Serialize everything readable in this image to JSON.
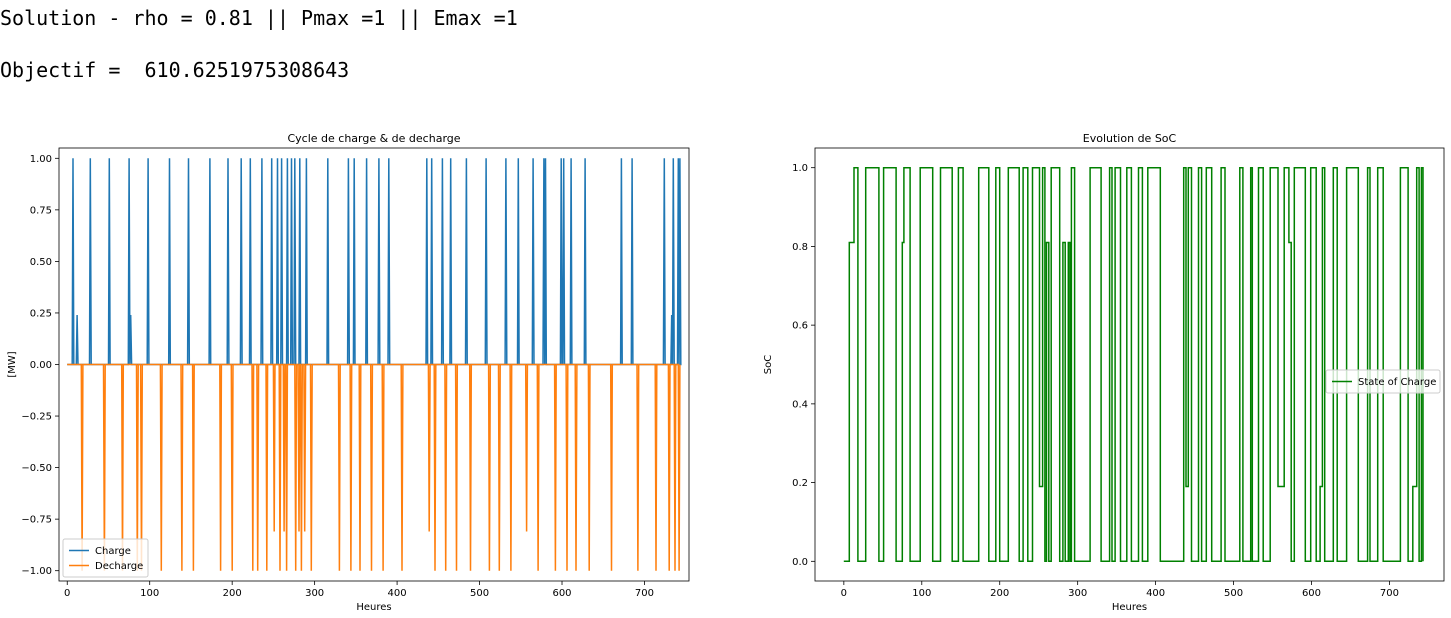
{
  "output": {
    "line1": "Solution - rho = 0.81 || Pmax =1 || Emax =1",
    "line2": "Objectif =  610.6251975308643"
  },
  "chart_data": [
    {
      "type": "line",
      "title": "Cycle de charge & de decharge",
      "xlabel": "Heures",
      "ylabel": "[MW]",
      "xlim": [
        -10,
        754
      ],
      "ylim": [
        -1.05,
        1.05
      ],
      "xticks": [
        0,
        100,
        200,
        300,
        400,
        500,
        600,
        700
      ],
      "yticks": [
        -1.0,
        -0.75,
        -0.5,
        -0.25,
        0.0,
        0.25,
        0.5,
        0.75,
        1.0
      ],
      "ytick_labels": [
        "−1.00",
        "−0.75",
        "−0.50",
        "−0.25",
        "0.00",
        "0.25",
        "0.50",
        "0.75",
        "1.00"
      ],
      "legend_position": "lower-left",
      "grid": false,
      "x_start": 0,
      "x_end": 743,
      "series": [
        {
          "name": "Charge",
          "color": "#1f77b4",
          "baseline": 0,
          "spikes": [
            [
              7,
              1
            ],
            [
              12,
              0.24
            ],
            [
              28,
              1
            ],
            [
              51,
              1
            ],
            [
              75,
              1
            ],
            [
              77,
              0.24
            ],
            [
              98,
              1
            ],
            [
              124,
              1
            ],
            [
              147,
              1
            ],
            [
              173,
              1
            ],
            [
              195,
              1
            ],
            [
              211,
              1
            ],
            [
              222,
              1
            ],
            [
              236,
              1
            ],
            [
              248,
              1
            ],
            [
              255,
              1
            ],
            [
              260,
              1
            ],
            [
              267,
              1
            ],
            [
              272,
              1
            ],
            [
              276,
              1
            ],
            [
              282,
              1
            ],
            [
              290,
              1
            ],
            [
              316,
              1
            ],
            [
              341,
              1
            ],
            [
              348,
              1
            ],
            [
              363,
              1
            ],
            [
              378,
              1
            ],
            [
              390,
              1
            ],
            [
              436,
              1
            ],
            [
              442,
              1
            ],
            [
              455,
              1
            ],
            [
              465,
              1
            ],
            [
              484,
              1
            ],
            [
              508,
              1
            ],
            [
              532,
              1
            ],
            [
              547,
              1
            ],
            [
              565,
              1
            ],
            [
              578,
              1
            ],
            [
              580,
              1
            ],
            [
              599,
              1
            ],
            [
              602,
              1
            ],
            [
              611,
              1
            ],
            [
              628,
              1
            ],
            [
              672,
              1
            ],
            [
              685,
              1
            ],
            [
              724,
              1
            ],
            [
              733,
              0.24
            ],
            [
              735,
              1
            ],
            [
              741,
              1
            ],
            [
              743,
              1
            ]
          ]
        },
        {
          "name": "Decharge",
          "color": "#ff7f0e",
          "baseline": 0,
          "spikes": [
            [
              18,
              -1
            ],
            [
              45,
              -1
            ],
            [
              67,
              -1
            ],
            [
              85,
              -1
            ],
            [
              90,
              -1
            ],
            [
              114,
              -1
            ],
            [
              139,
              -1
            ],
            [
              153,
              -1
            ],
            [
              186,
              -1
            ],
            [
              200,
              -1
            ],
            [
              225,
              -1
            ],
            [
              231,
              -1
            ],
            [
              242,
              -1
            ],
            [
              251,
              -0.81
            ],
            [
              258,
              -1
            ],
            [
              263,
              -0.81
            ],
            [
              266,
              -1
            ],
            [
              277,
              -1
            ],
            [
              281,
              -0.81
            ],
            [
              284,
              -1
            ],
            [
              288,
              -0.81
            ],
            [
              296,
              -1
            ],
            [
              330,
              -1
            ],
            [
              344,
              -1
            ],
            [
              355,
              -1
            ],
            [
              369,
              -1
            ],
            [
              383,
              -1
            ],
            [
              406,
              -1
            ],
            [
              439,
              -0.81
            ],
            [
              446,
              -1
            ],
            [
              459,
              -1
            ],
            [
              472,
              -1
            ],
            [
              489,
              -1
            ],
            [
              512,
              -1
            ],
            [
              524,
              -1
            ],
            [
              538,
              -1
            ],
            [
              557,
              -0.81
            ],
            [
              571,
              -1
            ],
            [
              592,
              -1
            ],
            [
              606,
              -1
            ],
            [
              617,
              -1
            ],
            [
              633,
              -1
            ],
            [
              660,
              -1
            ],
            [
              692,
              -1
            ],
            [
              714,
              -1
            ],
            [
              730,
              -1
            ],
            [
              737,
              -1
            ],
            [
              742,
              -1
            ]
          ]
        }
      ]
    },
    {
      "type": "line",
      "title": "Evolution de SoC",
      "xlabel": "Heures",
      "ylabel": "SoC",
      "xlim": [
        -37,
        770
      ],
      "ylim": [
        -0.05,
        1.05
      ],
      "xticks": [
        0,
        100,
        200,
        300,
        400,
        500,
        600,
        700
      ],
      "yticks": [
        0.0,
        0.2,
        0.4,
        0.6,
        0.8,
        1.0
      ],
      "ytick_labels": [
        "0.0",
        "0.2",
        "0.4",
        "0.6",
        "0.8",
        "1.0"
      ],
      "legend_position": "center-right",
      "grid": false,
      "series": [
        {
          "name": "State of Charge",
          "color": "#008000",
          "steps": [
            [
              0,
              0
            ],
            [
              7,
              0.81
            ],
            [
              12,
              0.81
            ],
            [
              13,
              1
            ],
            [
              18,
              0
            ],
            [
              28,
              1
            ],
            [
              45,
              0
            ],
            [
              51,
              1
            ],
            [
              67,
              0
            ],
            [
              75,
              0.81
            ],
            [
              77,
              1
            ],
            [
              85,
              0
            ],
            [
              98,
              1
            ],
            [
              114,
              0
            ],
            [
              124,
              1
            ],
            [
              139,
              0
            ],
            [
              147,
              1
            ],
            [
              153,
              0
            ],
            [
              173,
              1
            ],
            [
              186,
              0
            ],
            [
              195,
              1
            ],
            [
              200,
              0
            ],
            [
              211,
              1
            ],
            [
              225,
              0
            ],
            [
              230,
              1
            ],
            [
              236,
              0
            ],
            [
              242,
              1
            ],
            [
              251,
              0.19
            ],
            [
              255,
              1
            ],
            [
              258,
              0
            ],
            [
              260,
              0.81
            ],
            [
              263,
              0
            ],
            [
              266,
              1
            ],
            [
              277,
              0
            ],
            [
              281,
              0.81
            ],
            [
              284,
              0
            ],
            [
              288,
              0.81
            ],
            [
              290,
              0
            ],
            [
              292,
              1
            ],
            [
              296,
              0
            ],
            [
              316,
              1
            ],
            [
              330,
              0
            ],
            [
              341,
              1
            ],
            [
              344,
              0
            ],
            [
              348,
              1
            ],
            [
              355,
              0
            ],
            [
              363,
              1
            ],
            [
              369,
              0
            ],
            [
              378,
              1
            ],
            [
              383,
              0
            ],
            [
              390,
              1
            ],
            [
              406,
              0
            ],
            [
              436,
              1
            ],
            [
              439,
              0.19
            ],
            [
              442,
              1
            ],
            [
              446,
              0
            ],
            [
              455,
              1
            ],
            [
              459,
              0
            ],
            [
              465,
              1
            ],
            [
              472,
              0
            ],
            [
              484,
              1
            ],
            [
              489,
              0
            ],
            [
              508,
              1
            ],
            [
              512,
              0
            ],
            [
              522,
              1
            ],
            [
              524,
              0
            ],
            [
              532,
              1
            ],
            [
              538,
              0
            ],
            [
              547,
              1
            ],
            [
              557,
              0.19
            ],
            [
              565,
              1
            ],
            [
              571,
              0.81
            ],
            [
              574,
              0
            ],
            [
              578,
              1
            ],
            [
              592,
              0
            ],
            [
              599,
              1
            ],
            [
              606,
              0
            ],
            [
              611,
              0.19
            ],
            [
              614,
              1
            ],
            [
              617,
              0
            ],
            [
              628,
              1
            ],
            [
              633,
              0
            ],
            [
              645,
              1
            ],
            [
              660,
              0
            ],
            [
              672,
              1
            ],
            [
              675,
              0
            ],
            [
              685,
              1
            ],
            [
              692,
              0
            ],
            [
              714,
              1
            ],
            [
              724,
              0
            ],
            [
              730,
              0.19
            ],
            [
              735,
              1
            ],
            [
              738,
              0
            ],
            [
              741,
              1
            ],
            [
              743,
              0
            ]
          ]
        }
      ]
    }
  ]
}
